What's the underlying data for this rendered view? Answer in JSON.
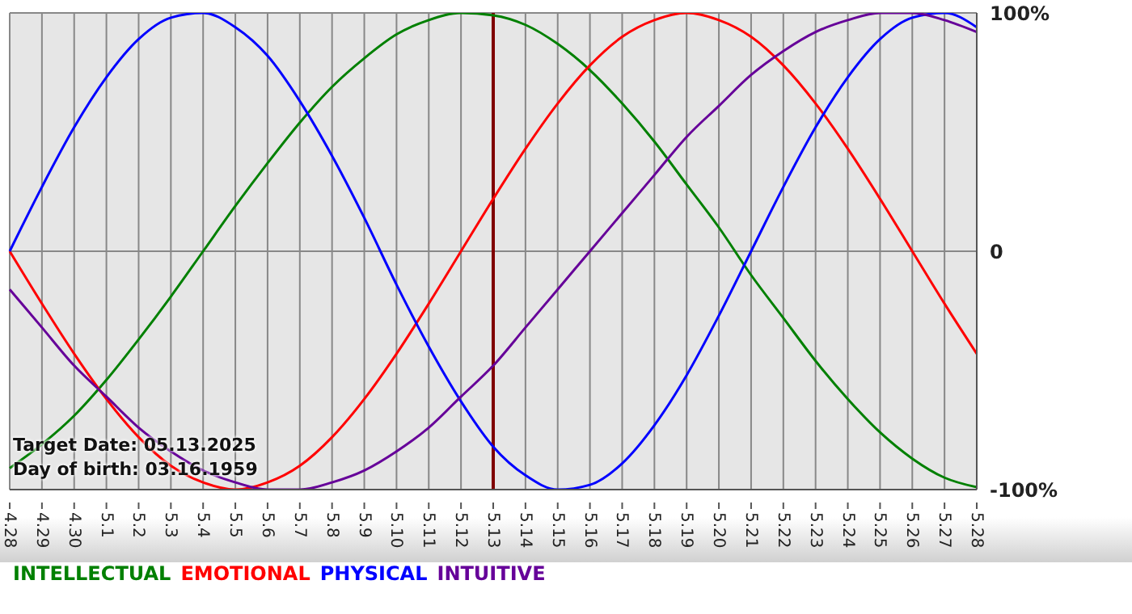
{
  "chart_data": {
    "type": "line",
    "categories": [
      "4.28",
      "4.29",
      "4.30",
      "5.1",
      "5.2",
      "5.3",
      "5.4",
      "5.5",
      "5.6",
      "5.7",
      "5.8",
      "5.9",
      "5.10",
      "5.11",
      "5.12",
      "5.13",
      "5.14",
      "5.15",
      "5.16",
      "5.17",
      "5.18",
      "5.19",
      "5.20",
      "5.21",
      "5.22",
      "5.23",
      "5.24",
      "5.25",
      "5.26",
      "5.27",
      "5.28"
    ],
    "series": [
      {
        "name": "INTELLECTUAL",
        "color": "#008000",
        "values": [
          -91,
          -81,
          -69,
          -54,
          -37,
          -19,
          0,
          19,
          37,
          54,
          69,
          81,
          91,
          97,
          100,
          99,
          95,
          87,
          76,
          62,
          46,
          28,
          10,
          -10,
          -28,
          -46,
          -62,
          -76,
          -87,
          -95,
          -99
        ]
      },
      {
        "name": "EMOTIONAL",
        "color": "#ff0000",
        "values": [
          0,
          -22,
          -43,
          -62,
          -78,
          -90,
          -97,
          -100,
          -97,
          -90,
          -78,
          -62,
          -43,
          -22,
          0,
          22,
          43,
          62,
          78,
          90,
          97,
          100,
          97,
          90,
          78,
          62,
          43,
          22,
          0,
          -22,
          -43
        ]
      },
      {
        "name": "PHYSICAL",
        "color": "#0000ff",
        "values": [
          0,
          27,
          52,
          73,
          89,
          98,
          100,
          94,
          82,
          63,
          40,
          14,
          -14,
          -40,
          -63,
          -82,
          -94,
          -100,
          -98,
          -89,
          -73,
          -52,
          -27,
          0,
          27,
          52,
          73,
          89,
          98,
          100,
          94
        ]
      },
      {
        "name": "INTUITIVE",
        "color": "#660099",
        "values": [
          -16,
          -32,
          -48,
          -61,
          -74,
          -84,
          -92,
          -97,
          -100,
          -100,
          -97,
          -92,
          -84,
          -74,
          -61,
          -48,
          -32,
          -16,
          0,
          16,
          32,
          48,
          61,
          74,
          84,
          92,
          97,
          100,
          100,
          97,
          92
        ]
      }
    ],
    "ylim": [
      -100,
      100
    ],
    "yticks": [
      {
        "value": 100,
        "label": "100%"
      },
      0,
      {
        "value": -100,
        "label": "-100%"
      }
    ],
    "grid": true,
    "legend": "bottom",
    "marker": "none",
    "line_style": "solid",
    "ref_lines": [
      {
        "axis": "x",
        "value": "5.13",
        "color": "#800000"
      }
    ],
    "annotations": [
      "Target Date: 05.13.2025",
      "Day of birth: 03.16.1959"
    ]
  }
}
